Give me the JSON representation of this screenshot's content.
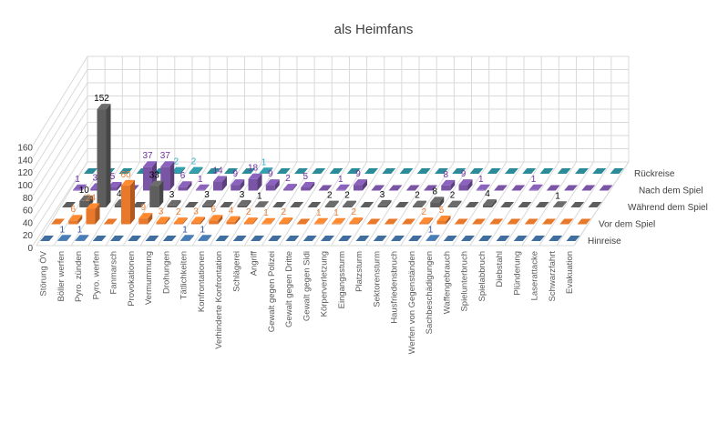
{
  "chart_data": {
    "type": "bar",
    "variant": "3d-column",
    "title": "als Heimfans",
    "xlabel": "",
    "ylabel": "",
    "ylim": [
      0,
      160
    ],
    "yticks": [
      "0",
      "20",
      "40",
      "60",
      "80",
      "100",
      "120",
      "140",
      "160"
    ],
    "grid": true,
    "legend": "right, series names at row ends",
    "categories": [
      "Störung ÖV",
      "Böller werfen",
      "Pyro. zünden",
      "Pyro. werfen",
      "Fanmarsch",
      "Provokationen",
      "Vermummung",
      "Drohungen",
      "Tätlichkeiten",
      "Konfrontationen",
      "Verhinderte Konfrontation",
      "Schlägerei",
      "Angriff",
      "Gewalt gegen Polizei",
      "Gewalt gegen Dritte",
      "Gewalt gegen Sidi",
      "Körperverletzung",
      "Eingangssturm",
      "Platzsturm",
      "Sektorensturm",
      "Hausfriedensbruch",
      "Werfen von Gegenständen",
      "Sachbeschädigungen",
      "Waffengebrauch",
      "Spielunterbruch",
      "Spielabbruch",
      "Diebstahl",
      "Plünderung",
      "Laserattacke",
      "Schwarzfahrt",
      "Evakuation"
    ],
    "series": [
      {
        "name": "Hinreise",
        "color": "#3f6e9f",
        "label_color": "#2f5597",
        "values": [
          0,
          1,
          1,
          0,
          0,
          0,
          0,
          0,
          1,
          1,
          0,
          0,
          0,
          0,
          0,
          0,
          0,
          0,
          0,
          0,
          0,
          0,
          1,
          0,
          0,
          0,
          0,
          0,
          0,
          0,
          0
        ]
      },
      {
        "name": "Vor dem Spiel",
        "color": "#e8782a",
        "label_color": "#ed7d31",
        "values": [
          0,
          6,
          24,
          0,
          60,
          9,
          3,
          2,
          3,
          6,
          4,
          2,
          1,
          2,
          0,
          1,
          1,
          2,
          0,
          0,
          0,
          2,
          5,
          0,
          0,
          0,
          0,
          0,
          0,
          0,
          0
        ]
      },
      {
        "name": "Während dem Spiel",
        "color": "#5e5e5e",
        "label_color": "#000000",
        "values": [
          0,
          10,
          152,
          4,
          0,
          33,
          3,
          0,
          3,
          0,
          3,
          1,
          0,
          0,
          0,
          2,
          2,
          0,
          3,
          0,
          2,
          8,
          2,
          0,
          4,
          0,
          0,
          0,
          1,
          0,
          0
        ]
      },
      {
        "name": "Nach dem Spiel",
        "color": "#7a55a6",
        "label_color": "#7030a0",
        "values": [
          1,
          3,
          5,
          0,
          37,
          37,
          6,
          1,
          14,
          9,
          18,
          9,
          2,
          5,
          0,
          1,
          9,
          0,
          0,
          0,
          0,
          8,
          9,
          1,
          0,
          0,
          1,
          0,
          0,
          0,
          0
        ]
      },
      {
        "name": "Rückreise",
        "color": "#2b8b98",
        "label_color": "#2aaec4",
        "values": [
          0,
          0,
          0,
          0,
          0,
          2,
          2,
          0,
          0,
          0,
          1,
          0,
          0,
          0,
          0,
          0,
          0,
          0,
          0,
          0,
          0,
          0,
          0,
          0,
          0,
          0,
          0,
          0,
          0,
          0,
          0
        ]
      }
    ]
  }
}
